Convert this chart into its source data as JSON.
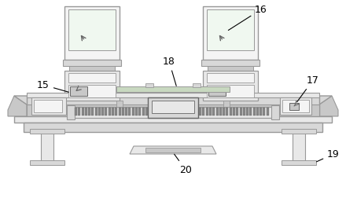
{
  "figsize": [
    4.4,
    2.52
  ],
  "dpi": 100,
  "lc": "#999999",
  "dc": "#666666",
  "fc_light": "#e8e8e8",
  "fc_mid": "#d8d8d8",
  "fc_dark": "#c8c8c8",
  "fc_white": "#f4f4f4",
  "fc_gear": "#888888"
}
